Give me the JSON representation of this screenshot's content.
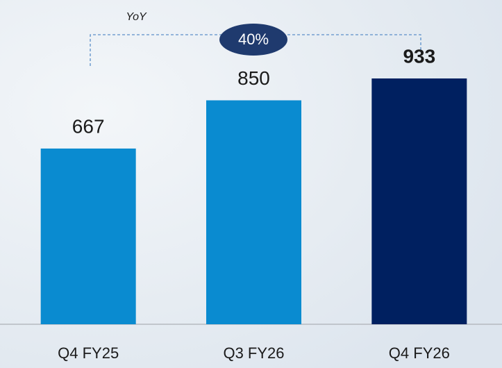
{
  "chart_data": {
    "type": "bar",
    "categories": [
      "Q4 FY25",
      "Q3 FY26",
      "Q4 FY26"
    ],
    "values": [
      667,
      850,
      933
    ],
    "colors": [
      "#0a8bd0",
      "#0a8bd0",
      "#002060"
    ],
    "value_label_bold": [
      false,
      false,
      true
    ],
    "annotation": {
      "title": "YoY",
      "text": "40%"
    }
  }
}
